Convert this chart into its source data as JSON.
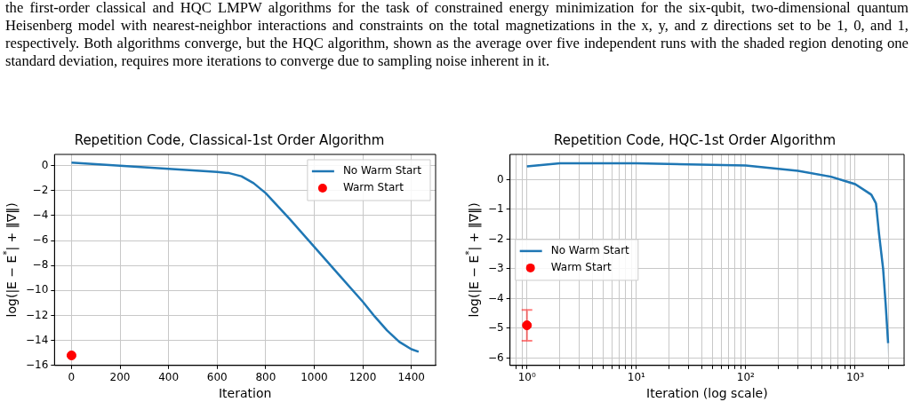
{
  "chart_data": [
    {
      "type": "line",
      "title": "Repetition Code, Classical-1st Order Algorithm",
      "xlabel": "Iteration",
      "ylabel": "log(|E − E$^{*}$| + ‖∇‖)",
      "annotations": [
        "the first-order classical and HQC LMPW algorithms for the task of constrained energy minimization for the six-qubit, two-dimensional quantum Heisenberg model with nearest-neighbor interactions and constraints on the total magnetizations in the x, y, and z directions set to be 1, 0, and 1, respectively. Both algorithms converge, but the HQC algorithm, shown as the average over five independent runs with the shaded region denoting one standard deviation, requires more iterations to converge due to sampling noise inherent in it."
      ],
      "series": [
        {
          "name": "No Warm Start",
          "color": "#1f77b4",
          "x": [
            0,
            200,
            400,
            600,
            650,
            700,
            750,
            800,
            900,
            1000,
            1100,
            1200,
            1250,
            1300,
            1350,
            1400,
            1430
          ],
          "values": [
            0.25,
            0,
            -0.25,
            -0.5,
            -0.6,
            -0.85,
            -1.4,
            -2.2,
            -4.3,
            -6.5,
            -8.7,
            -10.9,
            -12.1,
            -13.2,
            -14.1,
            -14.7,
            -14.9
          ]
        },
        {
          "name": "Warm Start",
          "type": "scatter",
          "color": "#ff0000",
          "marker": "circle",
          "x": [
            0
          ],
          "values": [
            -15.2
          ]
        }
      ],
      "xlim": [
        -70,
        1500
      ],
      "xticks": [
        0,
        200,
        400,
        600,
        800,
        1000,
        1200,
        1400
      ],
      "ylim": [
        -16,
        0.9
      ],
      "yticks": [
        -16,
        -14,
        -12,
        -10,
        -8,
        -6,
        -4,
        -2,
        0
      ],
      "grid": true,
      "legend": "top right"
    },
    {
      "type": "line",
      "title": "Repetition Code, HQC-1st Order Algorithm",
      "xlabel": "Iteration (log scale)",
      "ylabel": "log(|E − E$^{*}$| + ‖∇‖)",
      "series": [
        {
          "name": "No Warm Start",
          "color": "#1f77b4",
          "x": [
            1,
            2,
            10,
            100,
            300,
            600,
            1000,
            1400,
            1550,
            1650,
            1800,
            1900,
            2000
          ],
          "values": [
            0.45,
            0.55,
            0.55,
            0.48,
            0.3,
            0.1,
            -0.15,
            -0.5,
            -0.8,
            -1.8,
            -3,
            -4.2,
            -5.5
          ],
          "lower": [
            0.43,
            0.53,
            0.53,
            0.46,
            0.28,
            0.07,
            -0.19,
            -0.56,
            -0.9,
            -1.95,
            -3.2,
            -4.5,
            -5.95
          ],
          "upper": [
            0.47,
            0.57,
            0.57,
            0.5,
            0.32,
            0.13,
            -0.11,
            -0.44,
            -0.7,
            -1.65,
            -2.8,
            -3.9,
            -5.1
          ]
        },
        {
          "name": "Warm Start",
          "type": "scatter",
          "color": "#ff0000",
          "marker": "circle",
          "x": [
            1
          ],
          "values": [
            -4.9
          ],
          "errors": [
            [
              -5.42,
              -4.38
            ]
          ]
        }
      ],
      "xlim": [
        0.7,
        2800
      ],
      "xticks": [
        {
          "value": 0.8,
          "label": null
        },
        {
          "value": 0.9,
          "label": null
        },
        {
          "value": 1,
          "label": "10⁰"
        },
        {
          "value": 2,
          "label": null
        },
        {
          "value": 3,
          "label": null
        },
        {
          "value": 4,
          "label": null
        },
        {
          "value": 5,
          "label": null
        },
        {
          "value": 6,
          "label": null
        },
        {
          "value": 7,
          "label": null
        },
        {
          "value": 8,
          "label": null
        },
        {
          "value": 9,
          "label": null
        },
        {
          "value": 10,
          "label": "10¹"
        },
        {
          "value": 20,
          "label": null
        },
        {
          "value": 30,
          "label": null
        },
        {
          "value": 40,
          "label": null
        },
        {
          "value": 50,
          "label": null
        },
        {
          "value": 60,
          "label": null
        },
        {
          "value": 70,
          "label": null
        },
        {
          "value": 80,
          "label": null
        },
        {
          "value": 90,
          "label": null
        },
        {
          "value": 100,
          "label": "10²"
        },
        {
          "value": 200,
          "label": null
        },
        {
          "value": 300,
          "label": null
        },
        {
          "value": 400,
          "label": null
        },
        {
          "value": 500,
          "label": null
        },
        {
          "value": 600,
          "label": null
        },
        {
          "value": 700,
          "label": null
        },
        {
          "value": 800,
          "label": null
        },
        {
          "value": 900,
          "label": null
        },
        {
          "value": 1000,
          "label": "10³"
        },
        {
          "value": 2000,
          "label": null
        }
      ],
      "ylim": [
        -6.25,
        0.85
      ],
      "yticks": [
        -6,
        -5,
        -4,
        -3,
        -2,
        -1,
        0
      ],
      "log": "x",
      "grid": true,
      "legend": "center left"
    }
  ]
}
